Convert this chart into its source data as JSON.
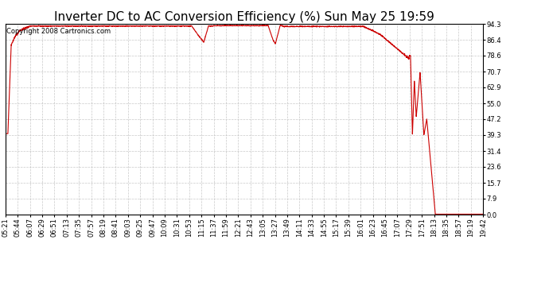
{
  "title": "Inverter DC to AC Conversion Efficiency (%) Sun May 25 19:59",
  "copyright_text": "Copyright 2008 Cartronics.com",
  "line_color": "#cc0000",
  "background_color": "#ffffff",
  "plot_bg_color": "#ffffff",
  "grid_color": "#bbbbbb",
  "yticks": [
    0.0,
    7.9,
    15.7,
    23.6,
    31.4,
    39.3,
    47.2,
    55.0,
    62.9,
    70.7,
    78.6,
    86.4,
    94.3
  ],
  "ylim": [
    0.0,
    94.3
  ],
  "xtick_labels": [
    "05:21",
    "05:44",
    "06:07",
    "06:29",
    "06:51",
    "07:13",
    "07:35",
    "07:57",
    "08:19",
    "08:41",
    "09:03",
    "09:25",
    "09:47",
    "10:09",
    "10:31",
    "10:53",
    "11:15",
    "11:37",
    "11:59",
    "12:21",
    "12:43",
    "13:05",
    "13:27",
    "13:49",
    "14:11",
    "14:33",
    "14:55",
    "15:17",
    "15:39",
    "16:01",
    "16:23",
    "16:45",
    "17:07",
    "17:29",
    "17:51",
    "18:13",
    "18:35",
    "18:57",
    "19:19",
    "19:42"
  ],
  "title_fontsize": 11,
  "copyright_fontsize": 6,
  "tick_fontsize": 6,
  "line_width": 0.8
}
